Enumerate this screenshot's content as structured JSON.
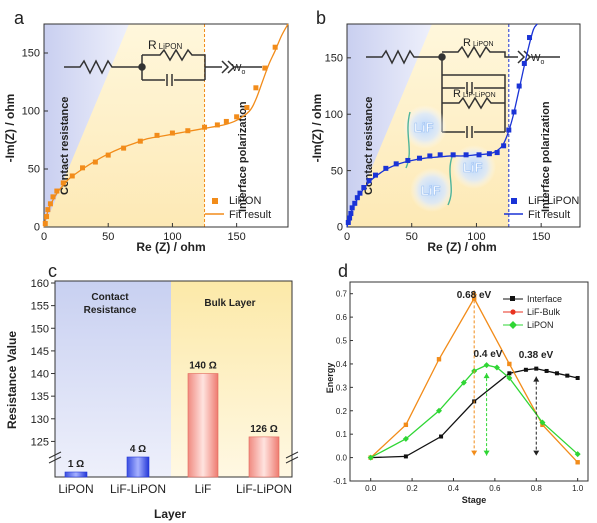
{
  "colors": {
    "lipon": "#f28c1a",
    "lif_lipon": "#1a33d6",
    "interface": "#111111",
    "lif_bulk": "#e8321f",
    "lipon_energy": "#2fd634",
    "contact_region": "#dfe3f6",
    "bulk_region": "#fdf0c9"
  },
  "icons": [
    "resistor-symbol",
    "constant-phase-element-symbol",
    "warburg-element-symbol",
    "lif-cluster-glow"
  ],
  "panel_a": {
    "label": "a",
    "circuit_r_label": "R",
    "circuit_r_sub": "LiPON",
    "circuit_w_label": "W",
    "circuit_w_sub": "o",
    "contact_text": "Contact resistance",
    "interface_text": "Interface polarization",
    "xlabel": "Re (Z) / ohm",
    "ylabel": "-Im(Z) / ohm",
    "legend_marker": "LiPON",
    "legend_line": "Fit result"
  },
  "panel_b": {
    "label": "b",
    "circuit_r1_label": "R",
    "circuit_r1_sub": "LiPON",
    "circuit_r2_label": "R",
    "circuit_r2_sub": "LiF-LiPON",
    "circuit_w_label": "W",
    "circuit_w_sub": "o",
    "contact_text": "Contact resistance",
    "interface_text": "Interface polarization",
    "xlabel": "Re (Z) / ohm",
    "ylabel": "-Im(Z) / ohm",
    "legend_marker": "LiF-LiPON",
    "legend_line": "Fit result",
    "lif_labels": [
      "LiF",
      "LiF",
      "LiF"
    ]
  },
  "panel_c": {
    "label": "c",
    "contact_header_1": "Contact",
    "contact_header_2": "Resistance",
    "bulk_header": "Bulk Layer",
    "xlabel": "Layer",
    "ylabel": "Resistance Value",
    "bar_labels": [
      "1 Ω",
      "4 Ω",
      "140 Ω",
      "126 Ω"
    ]
  },
  "panel_d": {
    "label": "d",
    "xlabel": "Stage",
    "ylabel": "Energy",
    "legend": [
      "Interface",
      "LiF-Bulk",
      "LiPON"
    ],
    "annotations": [
      "0.68 eV",
      "0.4 eV",
      "0.38 eV"
    ]
  },
  "chart_data": [
    {
      "type": "scatter",
      "panel": "a",
      "xlim": [
        0,
        190
      ],
      "ylim": [
        0,
        175
      ],
      "xticks": [
        0,
        50,
        100,
        150
      ],
      "yticks": [
        0,
        50,
        100,
        150
      ],
      "series": [
        {
          "name": "LiPON",
          "kind": "marker",
          "x": [
            1,
            2,
            3,
            5,
            7,
            10,
            15,
            22,
            30,
            40,
            50,
            62,
            75,
            88,
            100,
            112,
            125,
            135,
            142,
            150,
            158,
            165,
            172,
            180
          ],
          "y": [
            3,
            9,
            15,
            20,
            26,
            31,
            38,
            44,
            51,
            56,
            62,
            68,
            74,
            79,
            81,
            83,
            86,
            88,
            91,
            95,
            103,
            120,
            137,
            155
          ]
        },
        {
          "name": "Fit result",
          "kind": "line",
          "x": [
            0,
            2,
            5,
            10,
            15,
            20,
            30,
            40,
            50,
            60,
            70,
            80,
            90,
            100,
            110,
            120,
            130,
            140,
            150,
            160,
            165,
            170,
            175,
            180,
            185,
            190
          ],
          "y": [
            0,
            10,
            19,
            29,
            36,
            42,
            50,
            57,
            63,
            68,
            72,
            76,
            78,
            80,
            82,
            84,
            86,
            88,
            92,
            100,
            110,
            125,
            140,
            152,
            165,
            178
          ]
        }
      ]
    },
    {
      "type": "scatter",
      "panel": "b",
      "xlim": [
        0,
        180
      ],
      "ylim": [
        0,
        180
      ],
      "xticks": [
        0,
        50,
        100,
        150
      ],
      "yticks": [
        0,
        50,
        100,
        150
      ],
      "series": [
        {
          "name": "LiF-LiPON",
          "kind": "marker",
          "x": [
            1,
            2,
            3,
            4,
            6,
            8,
            10,
            13,
            17,
            22,
            30,
            38,
            47,
            56,
            64,
            72,
            82,
            92,
            102,
            110,
            116,
            121,
            125,
            129,
            133,
            137,
            141
          ],
          "y": [
            4,
            8,
            12,
            17,
            21,
            26,
            30,
            35,
            41,
            46,
            52,
            56,
            59,
            61,
            63,
            64,
            64,
            64,
            64,
            65,
            66,
            72,
            86,
            102,
            125,
            145,
            168
          ]
        },
        {
          "name": "Fit result",
          "kind": "line",
          "x": [
            0,
            2,
            5,
            10,
            15,
            20,
            30,
            40,
            50,
            60,
            70,
            80,
            90,
            100,
            110,
            115,
            120,
            124,
            128,
            132,
            136,
            140,
            144,
            147
          ],
          "y": [
            0,
            9,
            18,
            29,
            37,
            43,
            51,
            56,
            59,
            61,
            62,
            63,
            63,
            64,
            65,
            67,
            72,
            82,
            97,
            117,
            138,
            158,
            175,
            185
          ]
        }
      ]
    },
    {
      "type": "bar",
      "panel": "c",
      "categories": [
        "LiPON",
        "LiF-LiPON",
        "LiF",
        "LiF-LiPON"
      ],
      "values": [
        1,
        4,
        140,
        126
      ],
      "ylim": [
        120,
        160
      ],
      "yticks": [
        125,
        130,
        135,
        140,
        145,
        150,
        155,
        160
      ],
      "axis_break": true
    },
    {
      "type": "line",
      "panel": "d",
      "xlim": [
        -0.1,
        1.05
      ],
      "ylim": [
        -0.1,
        0.75
      ],
      "xticks": [
        0.0,
        0.2,
        0.4,
        0.6,
        0.8,
        1.0
      ],
      "yticks": [
        -0.1,
        0.0,
        0.1,
        0.2,
        0.3,
        0.4,
        0.5,
        0.6,
        0.7
      ],
      "series": [
        {
          "name": "Interface",
          "x": [
            0,
            0.17,
            0.34,
            0.5,
            0.67,
            0.75,
            0.8,
            0.85,
            0.9,
            0.95,
            1.0
          ],
          "y": [
            0,
            0.005,
            0.09,
            0.24,
            0.36,
            0.375,
            0.38,
            0.37,
            0.36,
            0.35,
            0.34
          ]
        },
        {
          "name": "LiF-Bulk",
          "x": [
            0,
            0.17,
            0.33,
            0.5,
            0.67,
            0.83,
            1.0
          ],
          "y": [
            0,
            0.14,
            0.42,
            0.68,
            0.4,
            0.14,
            -0.02
          ]
        },
        {
          "name": "LiPON",
          "x": [
            0,
            0.17,
            0.33,
            0.45,
            0.5,
            0.56,
            0.61,
            0.67,
            0.83,
            1.0
          ],
          "y": [
            0,
            0.08,
            0.2,
            0.32,
            0.37,
            0.395,
            0.385,
            0.34,
            0.15,
            0.015
          ]
        }
      ]
    }
  ]
}
